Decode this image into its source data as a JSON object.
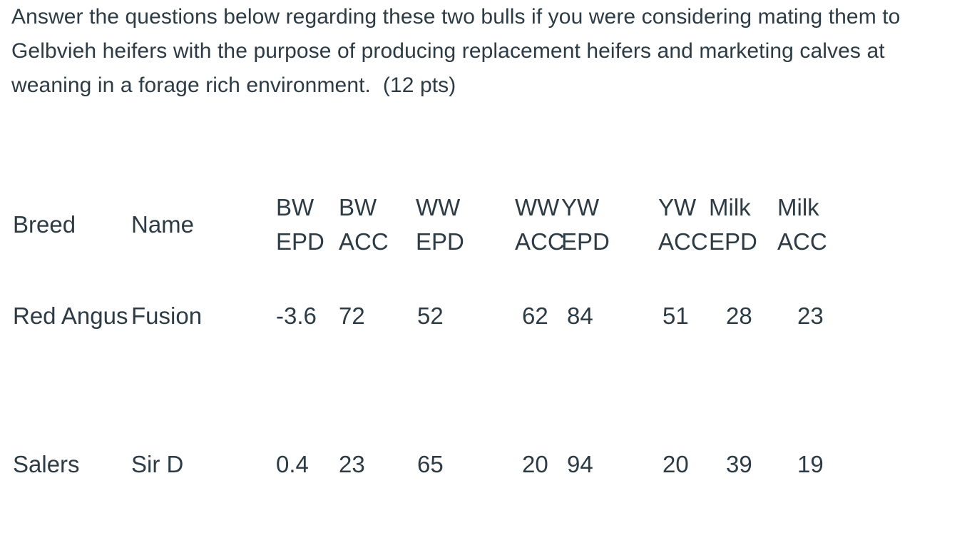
{
  "colors": {
    "text": "#2d3b45",
    "background": "#ffffff"
  },
  "question": {
    "lines": [
      "Answer the questions below regarding these two bulls if you were considering mating them to",
      "Gelbvieh heifers with the purpose of producing replacement heifers and marketing calves at",
      "weaning in a forage rich environment.  (12 pts)"
    ],
    "points": "12 pts"
  },
  "table": {
    "headers": [
      {
        "key": "breed",
        "line1": "Breed",
        "line2": ""
      },
      {
        "key": "name",
        "line1": "Name",
        "line2": ""
      },
      {
        "key": "bw-epd",
        "line1": "BW",
        "line2": "EPD"
      },
      {
        "key": "bw-acc",
        "line1": "BW",
        "line2": "ACC"
      },
      {
        "key": "ww-epd",
        "line1": "WW",
        "line2": "EPD"
      },
      {
        "key": "ww-acc",
        "line1": "WW",
        "line2": "ACC"
      },
      {
        "key": "yw-epd",
        "line1": "YW",
        "line2": "EPD"
      },
      {
        "key": "yw-acc",
        "line1": "YW",
        "line2": "ACC"
      },
      {
        "key": "milk-epd",
        "line1": "Milk",
        "line2": "EPD"
      },
      {
        "key": "milk-acc",
        "line1": "Milk",
        "line2": "ACC"
      }
    ],
    "rows": [
      {
        "breed": "Red Angus",
        "name": "Fusion",
        "bw_epd": "-3.6",
        "bw_acc": "72",
        "ww_epd": "52",
        "ww_acc": "62",
        "yw_epd": "84",
        "yw_acc": "51",
        "milk_epd": "28",
        "milk_acc": "23"
      },
      {
        "breed": "Salers",
        "name": "Sir D",
        "bw_epd": "0.4",
        "bw_acc": "23",
        "ww_epd": "65",
        "ww_acc": "20",
        "yw_epd": "94",
        "yw_acc": "20",
        "milk_epd": "39",
        "milk_acc": "19"
      }
    ]
  }
}
